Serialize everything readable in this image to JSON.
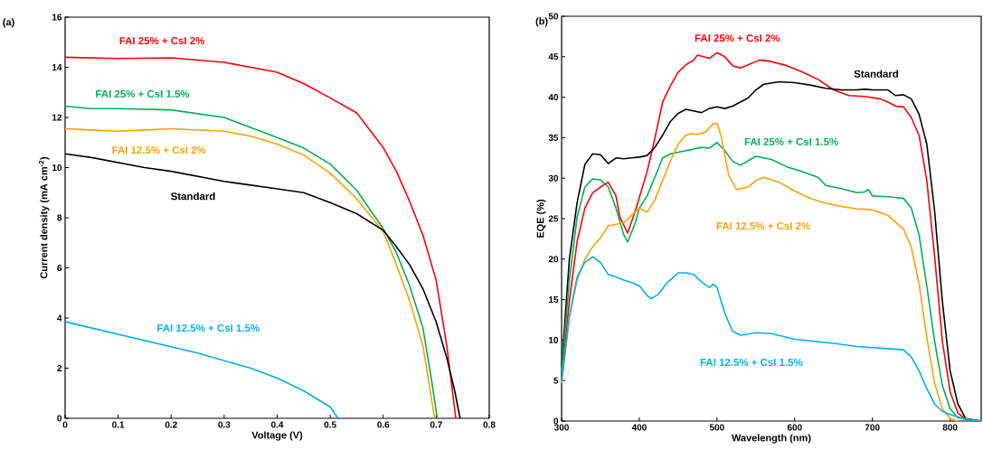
{
  "chart_data": [
    {
      "type": "line",
      "title": "(a)",
      "xlabel": "Voltage (V)",
      "ylabel": "Current density (mA cm$^{-2}$)",
      "xlim": [
        0,
        0.8
      ],
      "ylim": [
        0,
        16
      ],
      "xticks": [
        0,
        0.1,
        0.2,
        0.3,
        0.4,
        0.5,
        0.6,
        0.7,
        0.8
      ],
      "yticks": [
        0,
        2,
        4,
        6,
        8,
        10,
        12,
        14,
        16
      ],
      "series": [
        {
          "name": "FAI 25% + CsI 2%",
          "color": "#ff0000",
          "x": [
            0,
            0.1,
            0.2,
            0.3,
            0.4,
            0.45,
            0.5,
            0.55,
            0.6,
            0.625,
            0.65,
            0.675,
            0.7,
            0.72,
            0.737
          ],
          "values": [
            14.4,
            14.35,
            14.38,
            14.2,
            13.8,
            13.35,
            12.78,
            12.18,
            10.8,
            9.84,
            8.64,
            7.3,
            5.5,
            2.88,
            0
          ]
        },
        {
          "name": "FAI 25% + CsI 1.5%",
          "color": "#00b050",
          "x": [
            0,
            0.05,
            0.1,
            0.2,
            0.3,
            0.4,
            0.45,
            0.5,
            0.55,
            0.6,
            0.625,
            0.65,
            0.675,
            0.69,
            0.702
          ],
          "values": [
            12.45,
            12.35,
            12.35,
            12.3,
            12.0,
            11.2,
            10.78,
            10.14,
            9.1,
            7.56,
            6.6,
            5.28,
            3.6,
            1.68,
            0
          ]
        },
        {
          "name": "FAI 12.5% + CsI 2%",
          "color": "#ffa000",
          "x": [
            0,
            0.05,
            0.1,
            0.15,
            0.2,
            0.3,
            0.35,
            0.4,
            0.45,
            0.5,
            0.55,
            0.6,
            0.625,
            0.65,
            0.675,
            0.697
          ],
          "values": [
            11.55,
            11.5,
            11.45,
            11.5,
            11.55,
            11.45,
            11.25,
            10.94,
            10.5,
            9.78,
            8.76,
            7.44,
            6.12,
            4.68,
            2.88,
            0
          ]
        },
        {
          "name": "Standard",
          "color": "#000000",
          "x": [
            0,
            0.05,
            0.1,
            0.15,
            0.2,
            0.25,
            0.3,
            0.35,
            0.4,
            0.45,
            0.5,
            0.55,
            0.6,
            0.625,
            0.65,
            0.675,
            0.7,
            0.72,
            0.735,
            0.745
          ],
          "values": [
            10.55,
            10.4,
            10.2,
            10.0,
            9.85,
            9.65,
            9.45,
            9.3,
            9.15,
            9.0,
            8.6,
            8.16,
            7.5,
            6.84,
            6.12,
            5.16,
            3.84,
            2.4,
            1.08,
            0
          ]
        },
        {
          "name": "FAI 12.5% + CsI 1.5%",
          "color": "#00b0f0",
          "x": [
            0,
            0.05,
            0.1,
            0.15,
            0.2,
            0.25,
            0.3,
            0.35,
            0.4,
            0.45,
            0.5,
            0.515
          ],
          "values": [
            3.85,
            3.6,
            3.35,
            3.1,
            2.85,
            2.6,
            2.3,
            2.0,
            1.6,
            1.1,
            0.45,
            0
          ]
        }
      ]
    },
    {
      "type": "line",
      "title": "(b)",
      "xlabel": "Wavelength (nm)",
      "ylabel": "EQE (%)",
      "xlim": [
        300,
        840
      ],
      "ylim": [
        0,
        50
      ],
      "xticks": [
        300,
        400,
        500,
        600,
        700,
        800
      ],
      "yticks": [
        0,
        5,
        10,
        15,
        20,
        25,
        30,
        35,
        40,
        45,
        50
      ],
      "series": [
        {
          "name": "FAI 25% + CsI 2%",
          "color": "#ff0000",
          "x": [
            300,
            310,
            320,
            330,
            340,
            350,
            360,
            370,
            375,
            385,
            395,
            410,
            420,
            430,
            440,
            450,
            460,
            470,
            475,
            490,
            500,
            510,
            520,
            530,
            540,
            555,
            570,
            590,
            610,
            630,
            650,
            670,
            690,
            710,
            720,
            730,
            740,
            750,
            760,
            770,
            780,
            790,
            800,
            810,
            820,
            840
          ],
          "values": [
            5.5,
            14.8,
            22.2,
            26.3,
            28.2,
            28.9,
            29.5,
            27.8,
            25.2,
            23.2,
            26.0,
            30.8,
            34.9,
            39.4,
            41.4,
            43.1,
            44.0,
            44.6,
            45.2,
            44.8,
            45.5,
            45.0,
            43.9,
            43.6,
            44.0,
            44.6,
            44.4,
            43.9,
            43.1,
            42.2,
            40.9,
            40.2,
            40.1,
            39.8,
            39.4,
            38.9,
            38.8,
            37.5,
            35.3,
            29.7,
            20.4,
            9.9,
            3.6,
            1.0,
            0.2,
            0
          ]
        },
        {
          "name": "Standard",
          "color": "#000000",
          "x": [
            300,
            310,
            320,
            330,
            340,
            350,
            360,
            370,
            380,
            390,
            400,
            410,
            420,
            430,
            440,
            450,
            460,
            470,
            480,
            490,
            500,
            510,
            520,
            530,
            540,
            550,
            560,
            580,
            600,
            620,
            640,
            660,
            680,
            690,
            700,
            720,
            730,
            740,
            750,
            760,
            770,
            780,
            790,
            800,
            810,
            820,
            840
          ],
          "values": [
            6.6,
            20.0,
            27.0,
            31.7,
            33.0,
            32.9,
            31.8,
            32.5,
            32.4,
            32.5,
            32.6,
            32.8,
            33.8,
            35.3,
            37.0,
            38.0,
            38.5,
            38.3,
            38.1,
            38.6,
            38.8,
            38.6,
            38.9,
            39.4,
            39.9,
            40.9,
            41.6,
            41.9,
            41.8,
            41.5,
            41.1,
            40.9,
            40.9,
            41.0,
            40.9,
            40.9,
            40.2,
            40.3,
            39.8,
            37.9,
            34.2,
            26.0,
            14.8,
            6.2,
            2.1,
            0.3,
            0
          ]
        },
        {
          "name": "FAI 25% + CsI 1.5%",
          "color": "#00b050",
          "x": [
            300,
            310,
            320,
            330,
            340,
            350,
            360,
            370,
            380,
            385,
            395,
            400,
            410,
            420,
            430,
            440,
            460,
            480,
            490,
            500,
            510,
            520,
            530,
            550,
            570,
            590,
            610,
            630,
            640,
            660,
            680,
            690,
            695,
            700,
            720,
            740,
            750,
            760,
            770,
            780,
            790,
            800,
            810,
            840
          ],
          "values": [
            6.2,
            17.4,
            25.2,
            28.9,
            29.9,
            29.8,
            28.9,
            26.3,
            23.0,
            22.1,
            24.5,
            26.3,
            27.8,
            30.1,
            32.5,
            33.0,
            33.4,
            33.8,
            33.7,
            34.4,
            33.4,
            32.1,
            31.6,
            32.7,
            32.3,
            31.4,
            30.8,
            30.1,
            29.1,
            28.7,
            28.2,
            28.3,
            28.6,
            27.8,
            27.7,
            27.5,
            26.3,
            23.0,
            16.7,
            9.9,
            4.4,
            1.5,
            0.4,
            0
          ]
        },
        {
          "name": "FAI 12.5% + CsI 2%",
          "color": "#ffa000",
          "x": [
            300,
            310,
            320,
            330,
            340,
            350,
            360,
            380,
            390,
            400,
            410,
            420,
            430,
            440,
            450,
            460,
            465,
            475,
            485,
            495,
            500,
            505,
            515,
            525,
            540,
            550,
            560,
            580,
            600,
            620,
            640,
            660,
            680,
            700,
            720,
            740,
            750,
            760,
            770,
            780,
            790,
            800,
            810
          ],
          "values": [
            4.7,
            12.9,
            17.4,
            20.0,
            21.5,
            22.6,
            24.1,
            24.5,
            25.4,
            26.3,
            25.8,
            27.3,
            29.7,
            32.1,
            34.2,
            35.3,
            35.5,
            35.4,
            35.7,
            36.7,
            36.8,
            35.3,
            30.4,
            28.6,
            28.9,
            29.7,
            30.1,
            29.5,
            28.4,
            27.5,
            26.9,
            26.5,
            26.2,
            26.1,
            25.4,
            23.7,
            21.5,
            17.0,
            10.3,
            4.7,
            1.5,
            0.3,
            0
          ]
        },
        {
          "name": "FAI 12.5% + CsI 1.5%",
          "color": "#00b0f0",
          "x": [
            300,
            310,
            320,
            330,
            340,
            350,
            360,
            370,
            380,
            390,
            400,
            410,
            415,
            425,
            435,
            450,
            460,
            470,
            480,
            490,
            495,
            500,
            510,
            520,
            530,
            550,
            570,
            600,
            630,
            650,
            680,
            710,
            740,
            750,
            760,
            770,
            780,
            790,
            800,
            810,
            820,
            840
          ],
          "values": [
            4.9,
            12.9,
            17.8,
            19.6,
            20.3,
            19.6,
            18.1,
            17.8,
            17.4,
            17.1,
            16.7,
            15.5,
            15.1,
            15.7,
            17.0,
            18.3,
            18.3,
            18.1,
            17.2,
            16.5,
            16.9,
            16.5,
            13.3,
            11.1,
            10.6,
            10.9,
            10.8,
            10.1,
            9.8,
            9.6,
            9.2,
            9.0,
            8.8,
            7.9,
            6.2,
            4.0,
            2.1,
            1.2,
            0.8,
            0.5,
            0.2,
            0
          ]
        }
      ]
    }
  ]
}
